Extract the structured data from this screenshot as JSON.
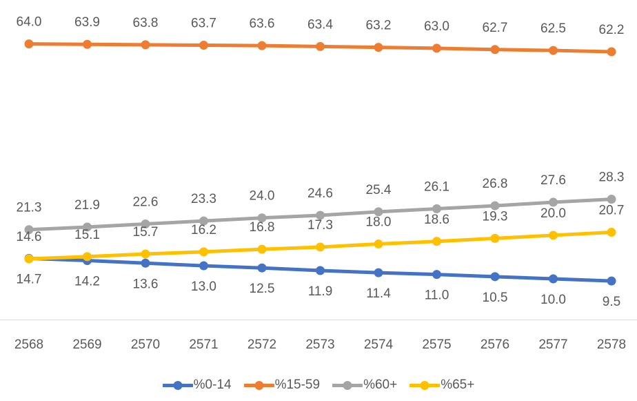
{
  "chart_data": {
    "type": "line",
    "title": "",
    "xlabel": "",
    "ylabel": "",
    "x": [
      2568,
      2569,
      2570,
      2571,
      2572,
      2573,
      2574,
      2575,
      2576,
      2577,
      2578
    ],
    "series": [
      {
        "name": "%0-14",
        "color": "#4472C4",
        "label_position": "below",
        "values": [
          14.7,
          14.2,
          13.6,
          13.0,
          12.5,
          11.9,
          11.4,
          11.0,
          10.5,
          10.0,
          9.5
        ]
      },
      {
        "name": "%15-59",
        "color": "#ED7D31",
        "label_position": "above",
        "values": [
          64.0,
          63.9,
          63.8,
          63.7,
          63.6,
          63.4,
          63.2,
          63.0,
          62.7,
          62.5,
          62.2
        ]
      },
      {
        "name": "%60+",
        "color": "#A5A5A5",
        "label_position": "above",
        "values": [
          21.3,
          21.9,
          22.6,
          23.3,
          24.0,
          24.6,
          25.4,
          26.1,
          26.8,
          27.6,
          28.3
        ]
      },
      {
        "name": "%65+",
        "color": "#FFC000",
        "label_position": "above",
        "values": [
          14.6,
          15.1,
          15.7,
          16.2,
          16.8,
          17.3,
          18.0,
          18.6,
          19.3,
          20.0,
          20.7
        ]
      }
    ],
    "ylim": [
      0,
      74
    ],
    "grid": false,
    "legend_position": "bottom",
    "data_label_decimals": 1,
    "label_color": "#595959",
    "axis_line_color": "#D9D9D9"
  }
}
